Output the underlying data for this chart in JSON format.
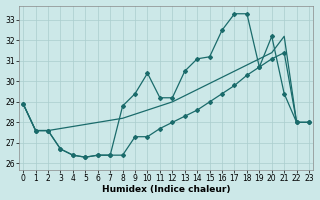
{
  "xlabel": "Humidex (Indice chaleur)",
  "bg_color": "#cce8e8",
  "line_color": "#1a6b6b",
  "grid_color": "#aacece",
  "xlim": [
    0,
    23
  ],
  "ylim": [
    25.7,
    33.7
  ],
  "yticks": [
    26,
    27,
    28,
    29,
    30,
    31,
    32,
    33
  ],
  "xticks": [
    0,
    1,
    2,
    3,
    4,
    5,
    6,
    7,
    8,
    9,
    10,
    11,
    12,
    13,
    14,
    15,
    16,
    17,
    18,
    19,
    20,
    21,
    22,
    23
  ],
  "line1_x": [
    0,
    1,
    2,
    3,
    4,
    5,
    6,
    7,
    8,
    9,
    10,
    11,
    12,
    13,
    14,
    15,
    16,
    17,
    18,
    19,
    20,
    21,
    22,
    23
  ],
  "line1_y": [
    28.9,
    27.6,
    27.6,
    27.7,
    27.8,
    27.9,
    28.0,
    28.1,
    28.2,
    28.4,
    28.6,
    28.8,
    29.0,
    29.3,
    29.6,
    29.9,
    30.2,
    30.5,
    30.8,
    31.1,
    31.4,
    32.2,
    28.0,
    28.0
  ],
  "line2_x": [
    0,
    1,
    2,
    3,
    4,
    5,
    6,
    7,
    8,
    9,
    10,
    11,
    12,
    13,
    14,
    15,
    16,
    17,
    18,
    19,
    20,
    21,
    22,
    23
  ],
  "line2_y": [
    28.9,
    27.6,
    27.6,
    26.7,
    26.4,
    26.3,
    26.4,
    26.4,
    28.8,
    29.4,
    30.4,
    29.2,
    29.2,
    30.5,
    31.1,
    31.2,
    32.5,
    33.3,
    33.3,
    30.7,
    32.2,
    29.4,
    28.0,
    28.0
  ],
  "line3_x": [
    0,
    1,
    2,
    3,
    4,
    5,
    6,
    7,
    8,
    9,
    10,
    11,
    12,
    13,
    14,
    15,
    16,
    17,
    18,
    19,
    20,
    21,
    22,
    23
  ],
  "line3_y": [
    28.9,
    27.6,
    27.6,
    26.7,
    26.4,
    26.3,
    26.4,
    26.4,
    26.4,
    27.3,
    27.3,
    27.7,
    28.0,
    28.3,
    28.6,
    29.0,
    29.4,
    29.8,
    30.3,
    30.7,
    31.1,
    31.4,
    28.0,
    28.0
  ]
}
